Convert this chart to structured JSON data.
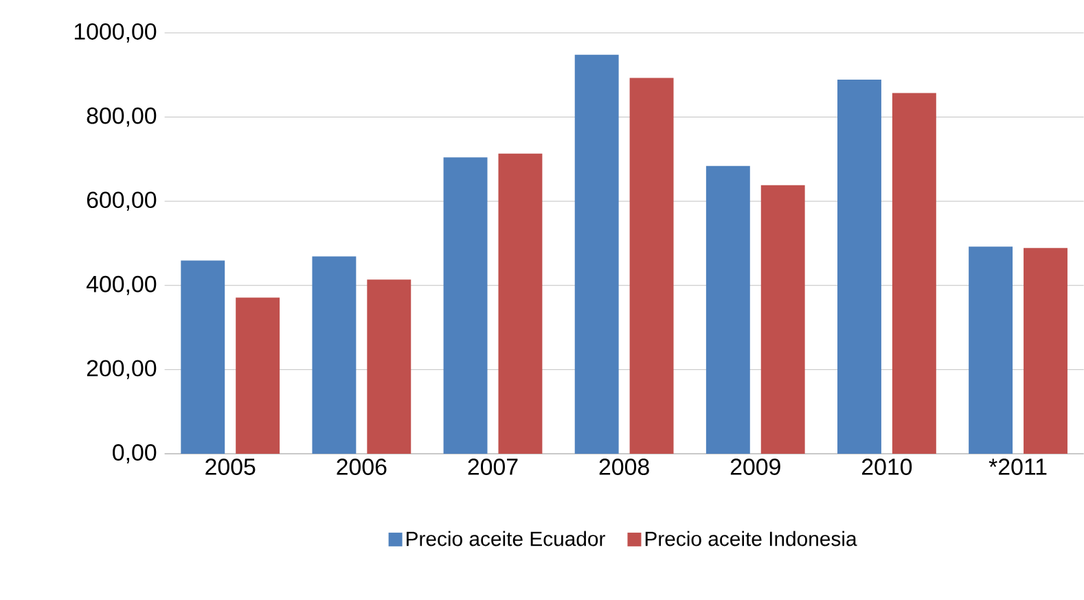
{
  "chart_data": {
    "type": "bar",
    "categories": [
      "2005",
      "2006",
      "2007",
      "2008",
      "2009",
      "2010",
      "*2011"
    ],
    "series": [
      {
        "name": "Precio aceite Ecuador",
        "color": "#4f81bd",
        "values": [
          459,
          469,
          704,
          948,
          684,
          889,
          492
        ]
      },
      {
        "name": "Precio aceite Indonesia",
        "color": "#c0504d",
        "values": [
          371,
          414,
          713,
          893,
          638,
          857,
          489
        ]
      }
    ],
    "ylim": [
      0,
      1000
    ],
    "yticks": [
      {
        "value": 0,
        "label": "0,00"
      },
      {
        "value": 200,
        "label": "200,00"
      },
      {
        "value": 400,
        "label": "400,00"
      },
      {
        "value": 600,
        "label": "600,00"
      },
      {
        "value": 800,
        "label": "800,00"
      },
      {
        "value": 1000,
        "label": "1000,00"
      }
    ],
    "grid": "y",
    "legend": "bottom"
  }
}
